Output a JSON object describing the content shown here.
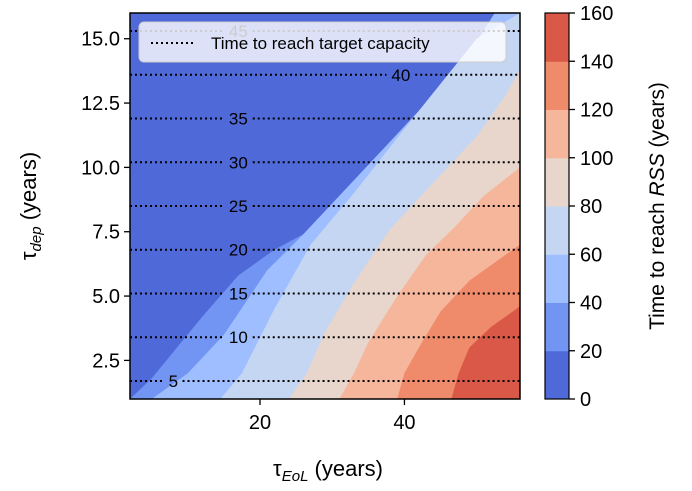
{
  "chart_data": {
    "type": "contour",
    "xlabel": {
      "base": "τ",
      "sub": "EoL",
      "unit": "(years)"
    },
    "ylabel": {
      "base": "τ",
      "sub": "dep",
      "unit": "(years)"
    },
    "xlim": [
      2,
      56
    ],
    "ylim": [
      1,
      16
    ],
    "xticks": [
      20,
      40
    ],
    "xtick_labels": [
      "20",
      "40"
    ],
    "yticks": [
      2.5,
      5.0,
      7.5,
      10.0,
      12.5,
      15.0
    ],
    "ytick_labels": [
      "2.5",
      "5.0",
      "7.5",
      "10.0",
      "12.5",
      "15.0"
    ],
    "colorbar": {
      "label": {
        "prefix": "Time to reach ",
        "italic": "RSS",
        "suffix": " (years)"
      },
      "levels": [
        0,
        20,
        40,
        60,
        80,
        100,
        120,
        140,
        160
      ],
      "tick_labels": [
        "0",
        "20",
        "40",
        "60",
        "80",
        "100",
        "120",
        "140",
        "160"
      ],
      "colors": [
        "#4f69d9",
        "#7295f4",
        "#9ebeff",
        "#c5d6f2",
        "#e8d6cc",
        "#f6b69b",
        "#ef8a6a",
        "#d95847"
      ]
    },
    "filled_contour_boundaries": [
      {
        "level": 20,
        "points": [
          [
            2.0,
            1.0
          ],
          [
            5.0,
            1.8
          ],
          [
            12.0,
            4.2
          ],
          [
            17.0,
            5.8
          ],
          [
            22.0,
            6.8
          ],
          [
            26.0,
            7.4
          ],
          [
            35.0,
            9.5
          ],
          [
            45.0,
            12.0
          ],
          [
            56.0,
            15.0
          ]
        ]
      },
      {
        "level": 40,
        "points": [
          [
            5.0,
            1.0
          ],
          [
            10.0,
            2.0
          ],
          [
            15.0,
            3.5
          ],
          [
            21.0,
            6.0
          ],
          [
            26.0,
            7.4
          ],
          [
            33.0,
            9.5
          ],
          [
            42.0,
            12.2
          ],
          [
            48.0,
            14.0
          ],
          [
            52.5,
            16.0
          ]
        ]
      },
      {
        "level": 60,
        "points": [
          [
            14.5,
            1.0
          ],
          [
            17.5,
            2.0
          ],
          [
            22.0,
            4.5
          ],
          [
            27.0,
            7.0
          ],
          [
            33.0,
            9.0
          ],
          [
            40.0,
            11.5
          ],
          [
            46.0,
            13.6
          ],
          [
            50.0,
            15.0
          ],
          [
            56.0,
            16.0
          ]
        ]
      },
      {
        "level": 80,
        "points": [
          [
            24.0,
            1.0
          ],
          [
            26.5,
            2.0
          ],
          [
            29.0,
            3.6
          ],
          [
            33.0,
            5.5
          ],
          [
            38.0,
            7.6
          ],
          [
            44.0,
            9.4
          ],
          [
            50.0,
            11.2
          ],
          [
            54.0,
            12.8
          ],
          [
            56.0,
            13.8
          ]
        ]
      },
      {
        "level": 100,
        "points": [
          [
            31.0,
            1.0
          ],
          [
            33.0,
            2.0
          ],
          [
            35.0,
            3.2
          ],
          [
            39.0,
            5.0
          ],
          [
            43.0,
            6.6
          ],
          [
            47.0,
            7.7
          ],
          [
            51.0,
            8.9
          ],
          [
            56.0,
            10.0
          ]
        ]
      },
      {
        "level": 120,
        "points": [
          [
            39.0,
            1.0
          ],
          [
            40.0,
            2.0
          ],
          [
            42.0,
            3.0
          ],
          [
            45.0,
            4.4
          ],
          [
            49.0,
            5.6
          ],
          [
            53.0,
            6.4
          ],
          [
            56.0,
            7.0
          ]
        ]
      },
      {
        "level": 140,
        "points": [
          [
            46.5,
            1.0
          ],
          [
            47.5,
            2.0
          ],
          [
            49.0,
            3.0
          ],
          [
            52.0,
            3.8
          ],
          [
            56.0,
            4.6
          ]
        ]
      },
      {
        "level": 160,
        "points": [
          [
            54.0,
            1.0
          ],
          [
            55.0,
            1.6
          ],
          [
            56.0,
            2.0
          ]
        ]
      }
    ],
    "target_capacity_lines": {
      "legend": "Time to reach target capacity",
      "lines": [
        {
          "label": "5",
          "y": 1.7,
          "label_x": 8
        },
        {
          "label": "10",
          "y": 3.4,
          "label_x": 17
        },
        {
          "label": "15",
          "y": 5.1,
          "label_x": 17
        },
        {
          "label": "20",
          "y": 6.8,
          "label_x": 17
        },
        {
          "label": "25",
          "y": 8.5,
          "label_x": 17
        },
        {
          "label": "30",
          "y": 10.2,
          "label_x": 17
        },
        {
          "label": "35",
          "y": 11.9,
          "label_x": 17
        },
        {
          "label": "40",
          "y": 13.6,
          "label_x": 39.5
        },
        {
          "label": "45",
          "y": 15.3,
          "label_x": 17
        }
      ]
    },
    "legend_position": "top"
  }
}
